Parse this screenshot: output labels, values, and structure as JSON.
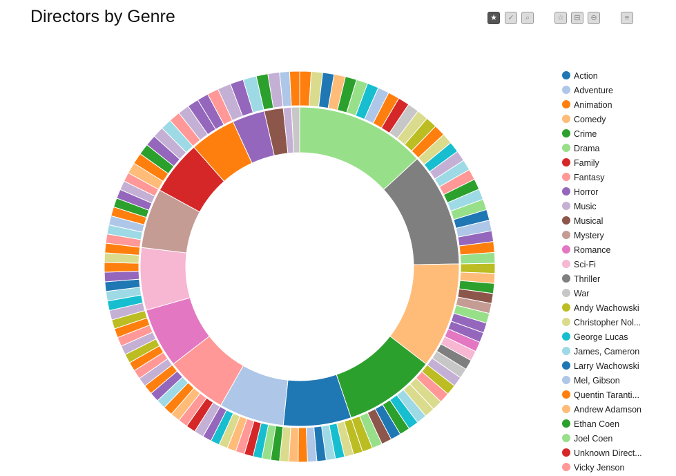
{
  "title": "Directors by Genre",
  "toolbar": [
    {
      "name": "favorite-button",
      "glyph": "★",
      "active": true
    },
    {
      "name": "select-button",
      "glyph": "✓",
      "active": false
    },
    {
      "name": "zoom-button",
      "glyph": "⌕",
      "active": false
    },
    {
      "name": "favorite-outline-button",
      "glyph": "☆",
      "active": false
    },
    {
      "name": "minus-button",
      "glyph": "⊟",
      "active": false
    },
    {
      "name": "zoom-out-button",
      "glyph": "⊖",
      "active": false
    },
    {
      "name": "menu-button",
      "glyph": "≡",
      "active": false
    }
  ],
  "palette": {
    "Action": "#1f77b4",
    "Adventure": "#aec7e8",
    "Animation": "#ff7f0e",
    "Comedy": "#ffbb78",
    "Crime": "#2ca02c",
    "Drama": "#98df8a",
    "Family": "#d62728",
    "Fantasy": "#ff9896",
    "Horror": "#9467bd",
    "Music": "#c5b0d5",
    "Musical": "#8c564b",
    "Mystery": "#c49c94",
    "Romance": "#e377c2",
    "Sci-Fi": "#f7b6d2",
    "Thriller": "#7f7f7f",
    "War": "#c7c7c7",
    "Andy Wachowski": "#bcbd22",
    "Christopher Nolan": "#dbdb8d",
    "George Lucas": "#17becf",
    "James, Cameron": "#9edae5",
    "Larry Wachowski": "#1f77b4",
    "Mel, Gibson": "#aec7e8",
    "Quentin Tarantino": "#ff7f0e",
    "Andrew Adamson": "#ffbb78",
    "Ethan Coen": "#2ca02c",
    "Joel Coen": "#98df8a",
    "Unknown Director": "#d62728",
    "Vicky Jenson": "#ff9896",
    "Other": "#c5b0d5"
  },
  "legend": [
    {
      "label": "Action",
      "key": "Action"
    },
    {
      "label": "Adventure",
      "key": "Adventure"
    },
    {
      "label": "Animation",
      "key": "Animation"
    },
    {
      "label": "Comedy",
      "key": "Comedy"
    },
    {
      "label": "Crime",
      "key": "Crime"
    },
    {
      "label": "Drama",
      "key": "Drama"
    },
    {
      "label": "Family",
      "key": "Family"
    },
    {
      "label": "Fantasy",
      "key": "Fantasy"
    },
    {
      "label": "Horror",
      "key": "Horror"
    },
    {
      "label": "Music",
      "key": "Music"
    },
    {
      "label": "Musical",
      "key": "Musical"
    },
    {
      "label": "Mystery",
      "key": "Mystery"
    },
    {
      "label": "Romance",
      "key": "Romance"
    },
    {
      "label": "Sci-Fi",
      "key": "Sci-Fi"
    },
    {
      "label": "Thriller",
      "key": "Thriller"
    },
    {
      "label": "War",
      "key": "War"
    },
    {
      "label": "Andy Wachowski",
      "key": "Andy Wachowski"
    },
    {
      "label": "Christopher Nol...",
      "key": "Christopher Nolan"
    },
    {
      "label": "George Lucas",
      "key": "George Lucas"
    },
    {
      "label": "James, Cameron",
      "key": "James, Cameron"
    },
    {
      "label": "Larry Wachowski",
      "key": "Larry Wachowski"
    },
    {
      "label": "Mel, Gibson",
      "key": "Mel, Gibson"
    },
    {
      "label": "Quentin Taranti...",
      "key": "Quentin Tarantino"
    },
    {
      "label": "Andrew Adamson",
      "key": "Andrew Adamson"
    },
    {
      "label": "Ethan Coen",
      "key": "Ethan Coen"
    },
    {
      "label": "Joel Coen",
      "key": "Joel Coen"
    },
    {
      "label": "Unknown Direct...",
      "key": "Unknown Director"
    },
    {
      "label": "Vicky Jenson",
      "key": "Vicky Jenson"
    }
  ],
  "chart_data": {
    "type": "pie",
    "subtype": "sunburst",
    "title": "Directors by Genre",
    "inner_ring": [
      {
        "genre": "Drama",
        "value": 48
      },
      {
        "genre": "Thriller",
        "value": 42
      },
      {
        "genre": "Comedy",
        "value": 39
      },
      {
        "genre": "Crime",
        "value": 34
      },
      {
        "genre": "Action",
        "value": 25
      },
      {
        "genre": "Adventure",
        "value": 24
      },
      {
        "genre": "Fantasy",
        "value": 23
      },
      {
        "genre": "Romance",
        "value": 22
      },
      {
        "genre": "Sci-Fi",
        "value": 23
      },
      {
        "genre": "Mystery",
        "value": 22
      },
      {
        "genre": "Family",
        "value": 20
      },
      {
        "genre": "Animation",
        "value": 17
      },
      {
        "genre": "Horror",
        "value": 12
      },
      {
        "genre": "Musical",
        "value": 7
      },
      {
        "genre": "Music",
        "value": 3
      },
      {
        "genre": "War",
        "value": 3
      }
    ],
    "outer_ring": [
      {
        "genre": "Drama",
        "directors": [
          "Quentin Tarantino",
          "Christopher Nolan",
          "Larry Wachowski",
          "Andrew Adamson",
          "Ethan Coen",
          "Joel Coen",
          "George Lucas",
          "Mel, Gibson",
          "Quentin Tarantino",
          "Unknown Director",
          "War",
          "Christopher Nolan",
          "Andy Wachowski",
          "Quentin Tarantino"
        ]
      },
      {
        "genre": "Thriller",
        "directors": [
          "Christopher Nolan",
          "George Lucas",
          "Music",
          "James, Cameron",
          "Fantasy",
          "Crime",
          "James, Cameron",
          "Joel Coen",
          "Larry Wachowski",
          "Mel, Gibson",
          "Horror",
          "Quentin Tarantino",
          "Joel Coen"
        ]
      },
      {
        "genre": "Comedy",
        "directors": [
          "Andy Wachowski",
          "Comedy",
          "Crime",
          "Musical",
          "Mystery",
          "Joel Coen",
          "Horror",
          "Horror",
          "Romance",
          "Sci-Fi",
          "Thriller",
          "War",
          "Music"
        ]
      },
      {
        "genre": "Crime",
        "directors": [
          "Andy Wachowski",
          "Fantasy",
          "Christopher Nolan",
          "Christopher Nolan",
          "James, Cameron",
          "George Lucas",
          "Crime",
          "Larry Wachowski",
          "Musical",
          "Joel Coen",
          "Andy Wachowski"
        ]
      },
      {
        "genre": "Action",
        "directors": [
          "Andy Wachowski",
          "Christopher Nolan",
          "George Lucas",
          "James, Cameron",
          "Larry Wachowski",
          "Mel, Gibson",
          "Quentin Tarantino",
          "Andrew Adamson",
          "Christopher Nolan"
        ]
      },
      {
        "genre": "Adventure",
        "directors": [
          "Crime",
          "Joel Coen",
          "George Lucas",
          "Unknown Director",
          "Fantasy",
          "Andrew Adamson",
          "Christopher Nolan",
          "George Lucas",
          "Horror"
        ]
      },
      {
        "genre": "Fantasy",
        "directors": [
          "Music",
          "Family",
          "Fantasy",
          "Andrew Adamson",
          "Quentin Tarantino",
          "James, Cameron",
          "Horror",
          "Quentin Tarantino"
        ]
      },
      {
        "genre": "Romance",
        "directors": [
          "Music",
          "Fantasy",
          "Quentin Tarantino",
          "Andy Wachowski",
          "Music",
          "Fantasy",
          "Animation",
          "Andy Wachowski"
        ]
      },
      {
        "genre": "Sci-Fi",
        "directors": [
          "Music",
          "George Lucas",
          "James, Cameron",
          "Larry Wachowski",
          "Horror",
          "Quentin Tarantino",
          "Christopher Nolan",
          "Animation"
        ]
      },
      {
        "genre": "Mystery",
        "directors": [
          "Fantasy",
          "James, Cameron",
          "Mel, Gibson",
          "Quentin Tarantino",
          "Crime",
          "Horror",
          "Music",
          "Fantasy"
        ]
      },
      {
        "genre": "Family",
        "directors": [
          "Andrew Adamson",
          "Quentin Tarantino",
          "Crime",
          "Horror",
          "Music",
          "James, Cameron"
        ]
      },
      {
        "genre": "Animation",
        "directors": [
          "Fantasy",
          "Music",
          "Horror",
          "Horror",
          "Fantasy"
        ]
      },
      {
        "genre": "Horror",
        "directors": [
          "Music",
          "Horror",
          "James, Cameron"
        ]
      },
      {
        "genre": "Musical",
        "directors": [
          "Crime",
          "Music"
        ]
      },
      {
        "genre": "Music",
        "directors": [
          "Mel, Gibson"
        ]
      },
      {
        "genre": "War",
        "directors": [
          "Animation"
        ]
      }
    ]
  }
}
